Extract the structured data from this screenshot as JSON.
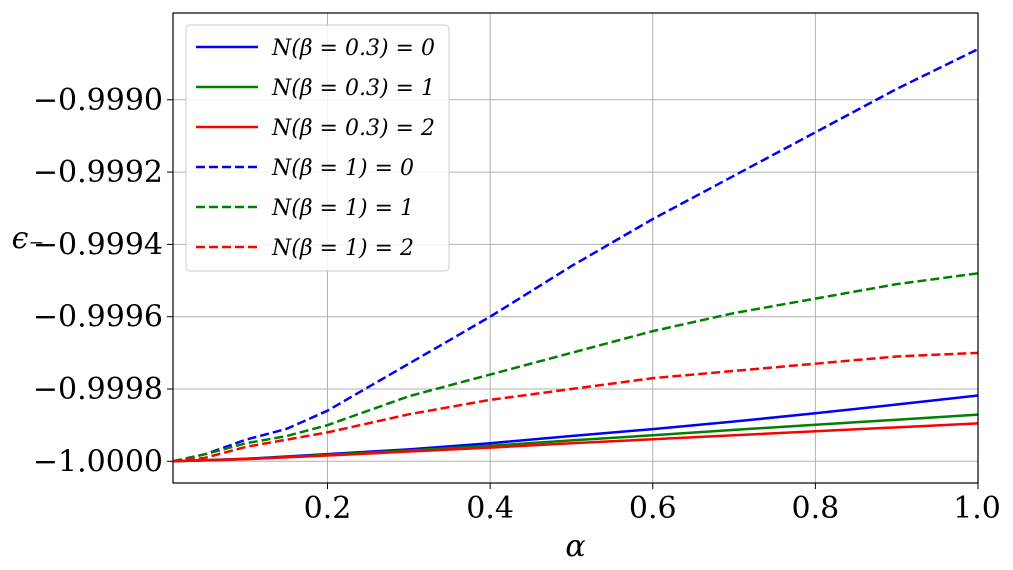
{
  "chart_data": {
    "type": "line",
    "title": "",
    "xlabel": "α",
    "ylabel": "ϵ₋",
    "xlim": [
      0.01,
      1.0
    ],
    "ylim": [
      -1.00006,
      -0.99876
    ],
    "grid": true,
    "legend_position": "top-left",
    "x_ticks": [
      {
        "value": 0.2,
        "label": "0.2"
      },
      {
        "value": 0.4,
        "label": "0.4"
      },
      {
        "value": 0.6,
        "label": "0.6"
      },
      {
        "value": 0.8,
        "label": "0.8"
      },
      {
        "value": 1.0,
        "label": "1.0"
      }
    ],
    "y_ticks": [
      {
        "value": -1.0,
        "label": "−1.0000"
      },
      {
        "value": -0.9998,
        "label": "−0.9998"
      },
      {
        "value": -0.9996,
        "label": "−0.9996"
      },
      {
        "value": -0.9994,
        "label": "−0.9994"
      },
      {
        "value": -0.9992,
        "label": "−0.9992"
      },
      {
        "value": -0.999,
        "label": "−0.9990"
      }
    ],
    "series": [
      {
        "name": "N(β = 0.3) = 0",
        "color": "#0000ff",
        "dash": "solid",
        "x": [
          0.01,
          0.1,
          0.2,
          0.3,
          0.4,
          0.5,
          0.6,
          0.7,
          0.8,
          0.9,
          1.0
        ],
        "y": [
          -1.0,
          -0.999993,
          -0.99998,
          -0.999967,
          -0.99995,
          -0.99993,
          -0.999911,
          -0.99989,
          -0.999867,
          -0.999843,
          -0.999818
        ]
      },
      {
        "name": "N(β = 0.3) = 1",
        "color": "#008000",
        "dash": "solid",
        "x": [
          0.01,
          0.1,
          0.2,
          0.3,
          0.4,
          0.5,
          0.6,
          0.7,
          0.8,
          0.9,
          1.0
        ],
        "y": [
          -1.0,
          -0.999994,
          -0.999982,
          -0.99997,
          -0.999957,
          -0.999942,
          -0.999928,
          -0.999913,
          -0.999899,
          -0.999885,
          -0.999871
        ]
      },
      {
        "name": "N(β = 0.3) = 2",
        "color": "#ff0000",
        "dash": "solid",
        "x": [
          0.01,
          0.1,
          0.2,
          0.3,
          0.4,
          0.5,
          0.6,
          0.7,
          0.8,
          0.9,
          1.0
        ],
        "y": [
          -1.0,
          -0.999994,
          -0.999984,
          -0.999973,
          -0.999962,
          -0.99995,
          -0.999939,
          -0.999928,
          -0.999917,
          -0.999906,
          -0.999895
        ]
      },
      {
        "name": "N(β = 1) = 0",
        "color": "#0000ff",
        "dash": "dashed",
        "x": [
          0.01,
          0.05,
          0.1,
          0.15,
          0.2,
          0.3,
          0.4,
          0.5,
          0.6,
          0.7,
          0.8,
          0.9,
          1.0
        ],
        "y": [
          -1.0,
          -0.99998,
          -0.99994,
          -0.99991,
          -0.99986,
          -0.99973,
          -0.9996,
          -0.99946,
          -0.99933,
          -0.99921,
          -0.99909,
          -0.99897,
          -0.99886
        ]
      },
      {
        "name": "N(β = 1) = 1",
        "color": "#008000",
        "dash": "dashed",
        "x": [
          0.01,
          0.05,
          0.1,
          0.15,
          0.2,
          0.3,
          0.4,
          0.5,
          0.6,
          0.7,
          0.8,
          0.9,
          1.0
        ],
        "y": [
          -1.0,
          -0.99998,
          -0.99995,
          -0.99993,
          -0.9999,
          -0.99982,
          -0.99976,
          -0.9997,
          -0.99964,
          -0.99959,
          -0.99955,
          -0.99951,
          -0.99948
        ]
      },
      {
        "name": "N(β = 1) = 2",
        "color": "#ff0000",
        "dash": "dashed",
        "x": [
          0.01,
          0.05,
          0.1,
          0.15,
          0.2,
          0.3,
          0.4,
          0.5,
          0.6,
          0.7,
          0.8,
          0.9,
          1.0
        ],
        "y": [
          -1.0,
          -0.99999,
          -0.99996,
          -0.99994,
          -0.99992,
          -0.99987,
          -0.99983,
          -0.9998,
          -0.99977,
          -0.99975,
          -0.99973,
          -0.99971,
          -0.9997
        ]
      }
    ]
  }
}
